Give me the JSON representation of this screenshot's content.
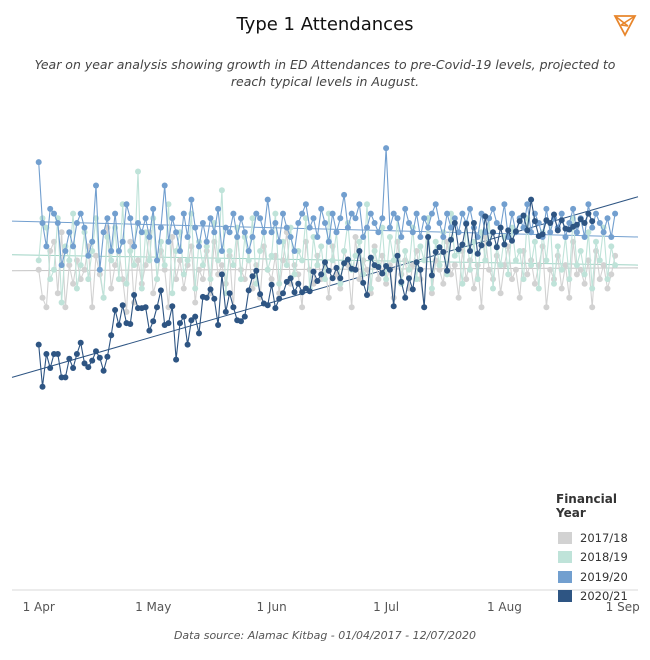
{
  "header": {
    "title": "Type 1 Attendances",
    "subtitle": "Year on year analysis showing growth in ED Attendances to pre-Covid-19 levels, projected to reach typical levels in August.",
    "logo_icon": "orange-triangle-logo-icon"
  },
  "legend": {
    "title": "Financial Year",
    "items": [
      {
        "label": "2017/18",
        "color": "#d2d2d2"
      },
      {
        "label": "2018/19",
        "color": "#bfe3d9"
      },
      {
        "label": "2019/20",
        "color": "#729fcf"
      },
      {
        "label": "2020/21",
        "color": "#2e5583"
      }
    ]
  },
  "footer": {
    "source": "Data source: Alamac Kitbag - 01/04/2017 - 12/07/2020"
  },
  "chart_data": {
    "type": "line",
    "x_type": "date",
    "x_range": [
      "2020-03-25",
      "2020-09-05"
    ],
    "x_ticks": [
      {
        "label": "1 Apr",
        "date": "2020-04-01"
      },
      {
        "label": "1 May",
        "date": "2020-05-01"
      },
      {
        "label": "1 Jun",
        "date": "2020-06-01"
      },
      {
        "label": "1 Jul",
        "date": "2020-07-01"
      },
      {
        "label": "1 Aug",
        "date": "2020-08-01"
      },
      {
        "label": "1 Sep",
        "date": "2020-09-01"
      }
    ],
    "y_range": [
      0,
      500
    ],
    "y_axis_labels_shown": false,
    "grid": false,
    "legend_position": "bottom-right",
    "series": [
      {
        "name": "2017/18",
        "color": "#d2d2d2",
        "start": "2020-04-01",
        "values": [
          340,
          310,
          300,
          360,
          370,
          315,
          380,
          300,
          345,
          325,
          350,
          330,
          340,
          365,
          300,
          355,
          335,
          310,
          385,
          320,
          345,
          360,
          330,
          295,
          370,
          305,
          350,
          325,
          345,
          380,
          315,
          330,
          360,
          340,
          300,
          375,
          330,
          350,
          320,
          345,
          365,
          305,
          340,
          330,
          360,
          315,
          370,
          335,
          345,
          325,
          355,
          300,
          375,
          340,
          330,
          360,
          320,
          345,
          310,
          365,
          340,
          330,
          355,
          315,
          350,
          380,
          325,
          345,
          335,
          300,
          370,
          340,
          325,
          355,
          330,
          345,
          310,
          365,
          335,
          320,
          360,
          345,
          300,
          375,
          330,
          350,
          340,
          315,
          365,
          330,
          355,
          325,
          345,
          310,
          370,
          335,
          350,
          320,
          345,
          360,
          330,
          300,
          395,
          315,
          350,
          340,
          325,
          370,
          335,
          345,
          310,
          360,
          330,
          350,
          320,
          345,
          300,
          375,
          340,
          330,
          355,
          315,
          345,
          365,
          330,
          340,
          310,
          360,
          335,
          350,
          325,
          345,
          365,
          300,
          340,
          330,
          355,
          320,
          345,
          310,
          370,
          335,
          340,
          325,
          350,
          300,
          360,
          330,
          345,
          320,
          335,
          355
        ]
      },
      {
        "name": "2018/19",
        "color": "#bfe3d9",
        "start": "2020-04-01",
        "values": [
          350,
          395,
          385,
          330,
          340,
          395,
          305,
          365,
          350,
          400,
          320,
          345,
          380,
          330,
          360,
          395,
          340,
          310,
          375,
          350,
          385,
          330,
          410,
          325,
          360,
          345,
          445,
          320,
          380,
          350,
          395,
          330,
          370,
          345,
          410,
          315,
          360,
          380,
          335,
          350,
          400,
          320,
          370,
          345,
          365,
          330,
          390,
          350,
          425,
          315,
          360,
          345,
          385,
          330,
          375,
          350,
          395,
          325,
          360,
          380,
          340,
          355,
          400,
          325,
          370,
          345,
          385,
          335,
          360,
          350,
          395,
          320,
          375,
          345,
          365,
          330,
          400,
          350,
          380,
          325,
          360,
          390,
          340,
          355,
          370,
          335,
          410,
          320,
          360,
          345,
          385,
          330,
          375,
          350,
          395,
          325,
          360,
          340,
          385,
          330,
          365,
          350,
          395,
          320,
          370,
          345,
          380,
          335,
          400,
          355,
          360,
          325,
          390,
          340,
          370,
          330,
          380,
          350,
          395,
          320,
          365,
          345,
          375,
          335,
          385,
          350,
          360,
          330,
          395,
          345,
          370,
          320,
          380,
          350,
          390,
          325,
          365,
          340,
          375,
          330,
          395,
          345,
          360,
          335,
          380,
          320,
          370,
          350,
          385,
          330,
          365,
          345
        ]
      },
      {
        "name": "2019/20",
        "color": "#729fcf",
        "start": "2020-04-01",
        "values": [
          455,
          390,
          365,
          405,
          400,
          390,
          345,
          360,
          380,
          365,
          390,
          400,
          385,
          355,
          370,
          430,
          340,
          380,
          395,
          360,
          400,
          360,
          370,
          410,
          395,
          365,
          390,
          380,
          395,
          375,
          405,
          350,
          385,
          430,
          370,
          395,
          380,
          360,
          400,
          375,
          415,
          385,
          365,
          390,
          370,
          395,
          380,
          405,
          360,
          385,
          380,
          400,
          375,
          395,
          380,
          360,
          375,
          400,
          395,
          380,
          415,
          380,
          390,
          370,
          400,
          385,
          375,
          360,
          390,
          400,
          410,
          385,
          395,
          375,
          405,
          390,
          370,
          400,
          380,
          395,
          420,
          385,
          400,
          395,
          410,
          375,
          385,
          400,
          390,
          380,
          395,
          470,
          385,
          400,
          395,
          375,
          405,
          390,
          380,
          400,
          375,
          395,
          385,
          400,
          410,
          390,
          375,
          400,
          385,
          395,
          380,
          400,
          390,
          405,
          385,
          375,
          400,
          380,
          395,
          405,
          390,
          385,
          410,
          375,
          400,
          380,
          395,
          385,
          410,
          380,
          400,
          390,
          375,
          405,
          380,
          395,
          385,
          400,
          375,
          390,
          405,
          380,
          395,
          375,
          410,
          385,
          400,
          390,
          380,
          395,
          375,
          400
        ]
      },
      {
        "name": "2020/21",
        "color": "#2e5583",
        "start": "2020-04-01",
        "values": [
          260,
          215,
          250,
          235,
          250,
          250,
          225,
          225,
          245,
          235,
          250,
          262,
          240,
          236,
          243,
          253,
          246,
          232,
          247,
          270,
          297,
          281,
          302,
          283,
          282,
          313,
          299,
          299,
          300,
          275,
          285,
          300,
          318,
          281,
          283,
          301,
          244,
          283,
          290,
          260,
          286,
          290,
          272,
          311,
          310,
          319,
          309,
          281,
          335,
          295,
          315,
          300,
          286,
          285,
          290,
          318,
          333,
          339,
          314,
          304,
          302,
          324,
          299,
          309,
          315,
          327,
          331,
          316,
          325,
          316,
          320,
          317,
          338,
          328,
          335,
          348,
          339,
          331,
          342,
          331,
          347,
          351,
          341,
          340,
          360,
          326,
          313,
          353,
          345,
          343,
          336,
          344,
          340,
          301,
          355,
          327,
          310,
          331,
          319,
          348,
          340,
          300,
          375,
          334,
          359,
          364,
          359,
          339,
          372,
          390,
          362,
          367,
          389,
          360,
          390,
          357,
          366,
          397,
          368,
          380,
          364,
          385,
          367,
          382,
          371,
          381,
          392,
          398,
          382,
          415,
          392,
          376,
          378,
          393,
          390,
          399,
          382,
          393,
          384,
          383,
          386,
          388,
          394,
          390,
          400,
          392
        ]
      }
    ],
    "trend_lines": [
      {
        "name": "2017/18",
        "color": "#d2d2d2",
        "start": 339,
        "end": 342
      },
      {
        "name": "2018/19",
        "color": "#bfe3d9",
        "start": 356,
        "end": 345
      },
      {
        "name": "2019/20",
        "color": "#729fcf",
        "start": 392,
        "end": 375
      },
      {
        "name": "2020/21",
        "color": "#2e5583",
        "start": 225,
        "end": 418
      }
    ]
  }
}
